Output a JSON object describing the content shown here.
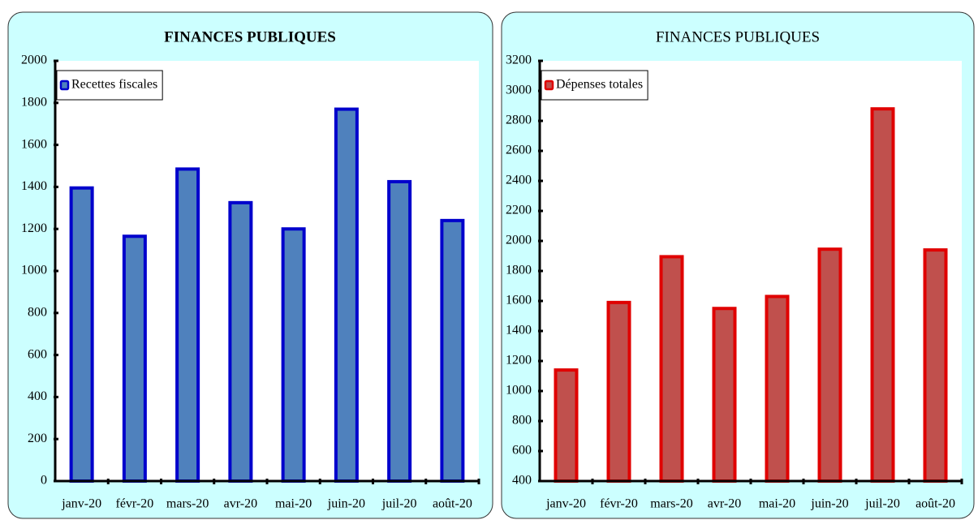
{
  "chart_data": [
    {
      "type": "bar",
      "title": "FINANCES PUBLIQUES",
      "categories": [
        "janv-20",
        "févr-20",
        "mars-20",
        "avr-20",
        "mai-20",
        "juin-20",
        "juil-20",
        "août-20"
      ],
      "series": [
        {
          "name": "Recettes fiscales",
          "color": "#4f81bd",
          "edgecolor": "#0000cc",
          "values": [
            1395,
            1165,
            1485,
            1325,
            1200,
            1770,
            1425,
            1240
          ]
        }
      ],
      "ylim": [
        0,
        2000
      ],
      "yticks": [
        0,
        200,
        400,
        600,
        800,
        1000,
        1200,
        1400,
        1600,
        1800,
        2000
      ],
      "legend": "upper left"
    },
    {
      "type": "bar",
      "title": "FINANCES PUBLIQUES",
      "categories": [
        "janv-20",
        "févr-20",
        "mars-20",
        "avr-20",
        "mai-20",
        "juin-20",
        "juil-20",
        "août-20"
      ],
      "series": [
        {
          "name": "Dépenses totales",
          "color": "#c0504d",
          "edgecolor": "#e00000",
          "values": [
            1140,
            1590,
            1895,
            1550,
            1630,
            1945,
            2880,
            1940
          ]
        }
      ],
      "ylim": [
        400,
        3200
      ],
      "yticks": [
        400,
        600,
        800,
        1000,
        1200,
        1400,
        1600,
        1800,
        2000,
        2200,
        2400,
        2600,
        2800,
        3000,
        3200
      ],
      "legend": "upper left"
    }
  ]
}
